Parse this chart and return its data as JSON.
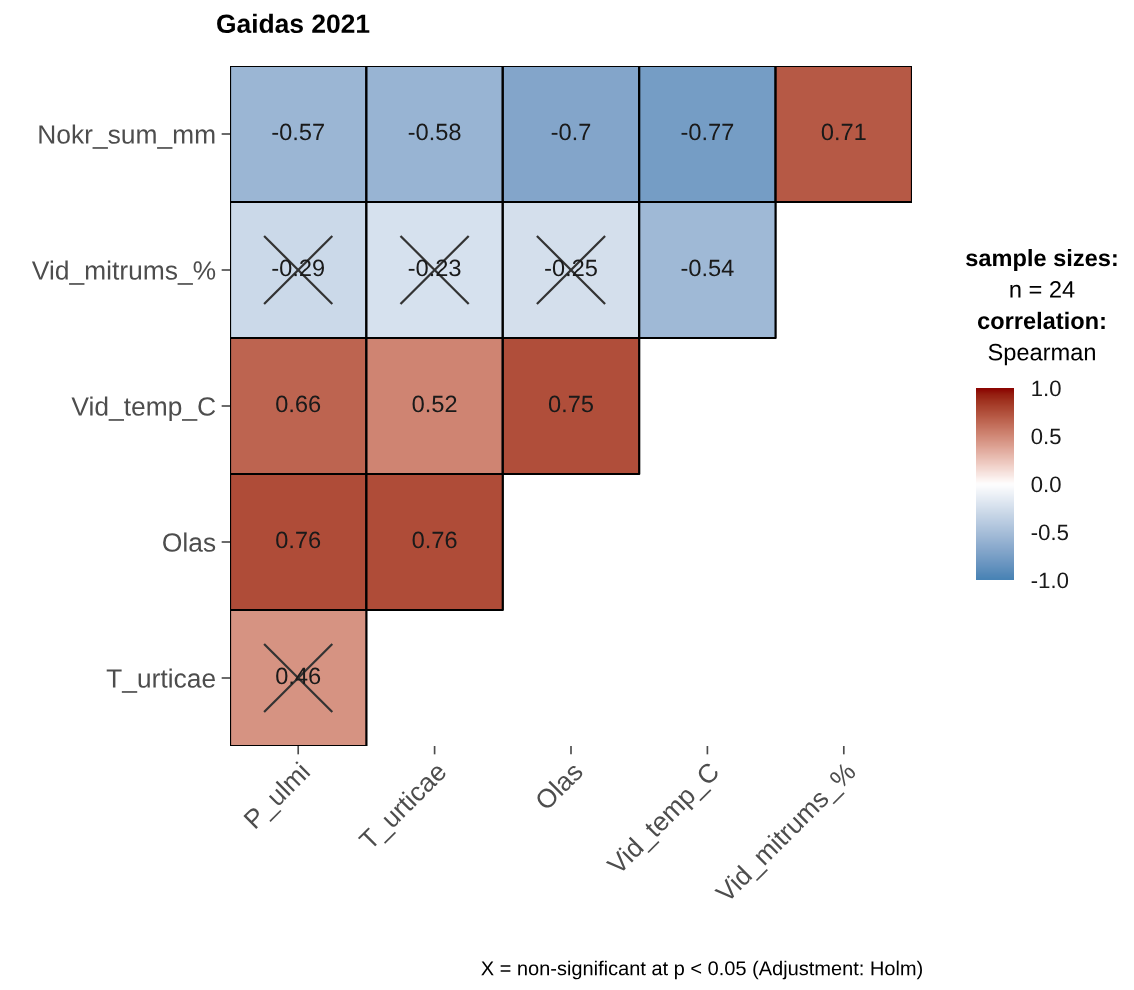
{
  "chart_data": {
    "type": "heatmap",
    "title": "Gaidas 2021",
    "categories": [
      "P_ulmi",
      "T_urticae",
      "Olas",
      "Vid_temp_C",
      "Vid_mitrums_%"
    ],
    "y_categories": [
      "Nokr_sum_mm",
      "Vid_mitrums_%",
      "Vid_temp_C",
      "Olas",
      "T_urticae"
    ],
    "cells": [
      [
        -0.57,
        -0.58,
        -0.7,
        -0.77,
        0.71
      ],
      [
        -0.29,
        -0.23,
        -0.25,
        -0.54,
        null
      ],
      [
        0.66,
        0.52,
        0.75,
        null,
        null
      ],
      [
        0.76,
        0.76,
        null,
        null,
        null
      ],
      [
        0.46,
        null,
        null,
        null,
        null
      ]
    ],
    "data_labels": true,
    "colors": [
      "#4682b4",
      "#ffffff",
      "#8b0000"
    ],
    "clim": [
      -1,
      1
    ],
    "cticks": [
      {
        "value": -1,
        "label": "-1.0"
      },
      -0.5,
      {
        "value": 0,
        "label": "0.0"
      },
      0.5,
      {
        "value": 1,
        "label": "1.0"
      }
    ],
    "clabel": "sample sizes:\nn = 24\ncorrelation:\nSpearman",
    "annotations": [
      "X = non-significant at p < 0.05 (Adjustment: Holm)"
    ]
  }
}
